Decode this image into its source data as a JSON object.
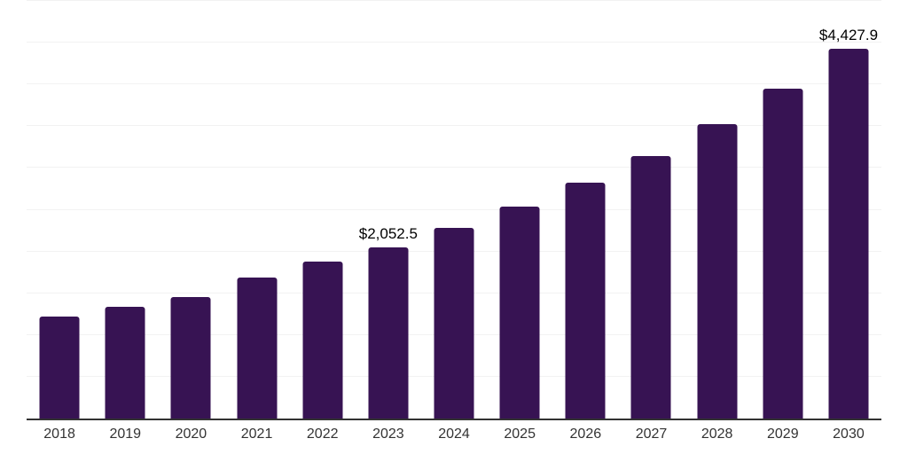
{
  "chart_data": {
    "type": "bar",
    "title": "",
    "xlabel": "",
    "ylabel": "",
    "categories": [
      "2018",
      "2019",
      "2020",
      "2021",
      "2022",
      "2023",
      "2024",
      "2025",
      "2026",
      "2027",
      "2028",
      "2029",
      "2030"
    ],
    "values": [
      1220,
      1338,
      1455,
      1688,
      1880,
      2052.5,
      2283,
      2538,
      2825,
      3143,
      3525,
      3950,
      4427.9
    ],
    "annotations": [
      {
        "category": "2023",
        "label": "$2,052.5"
      },
      {
        "category": "2030",
        "label": "$4,427.9"
      }
    ],
    "ylim": [
      0,
      5000
    ],
    "gridline_step": 500,
    "grid": true,
    "legend": false,
    "colors": {
      "bar": "#371353",
      "axis_line": "#333333",
      "gridline": "#f2f2f2",
      "tick_label": "#333333",
      "annotation_text": "#000000",
      "background": "#ffffff"
    }
  }
}
